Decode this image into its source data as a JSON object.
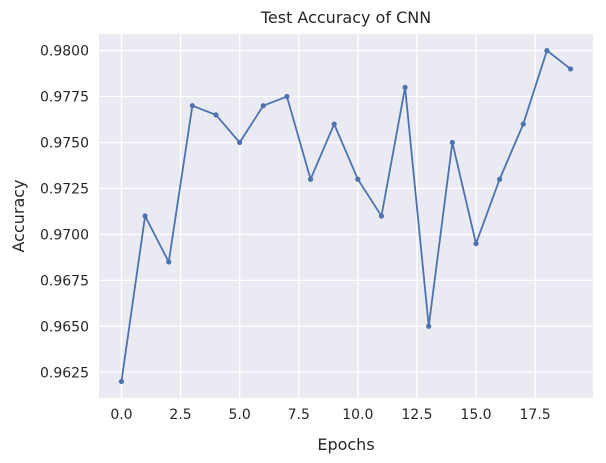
{
  "chart_data": {
    "type": "line",
    "title": "Test Accuracy of CNN",
    "xlabel": "Epochs",
    "ylabel": "Accuracy",
    "xlim": [
      -0.95,
      19.95
    ],
    "ylim": [
      0.9611,
      0.9809
    ],
    "xticks": [
      "0.0",
      "2.5",
      "5.0",
      "7.5",
      "10.0",
      "12.5",
      "15.0",
      "17.5"
    ],
    "yticks": [
      "0.9625",
      "0.9650",
      "0.9675",
      "0.9700",
      "0.9725",
      "0.9750",
      "0.9775",
      "0.9800"
    ],
    "grid": true,
    "colors": {
      "background": "#eaeaf2",
      "grid": "#ffffff",
      "line": "#4c72b0",
      "text": "#262626"
    },
    "series": [
      {
        "x": [
          0,
          1,
          2,
          3,
          4,
          5,
          6,
          7,
          8,
          9,
          10,
          11,
          12,
          13,
          14,
          15,
          16,
          17,
          18,
          19
        ],
        "values": [
          0.962,
          0.971,
          0.9685,
          0.977,
          0.9765,
          0.975,
          0.977,
          0.9775,
          0.973,
          0.976,
          0.973,
          0.971,
          0.978,
          0.965,
          0.975,
          0.9695,
          0.973,
          0.976,
          0.98,
          0.979
        ]
      }
    ]
  }
}
